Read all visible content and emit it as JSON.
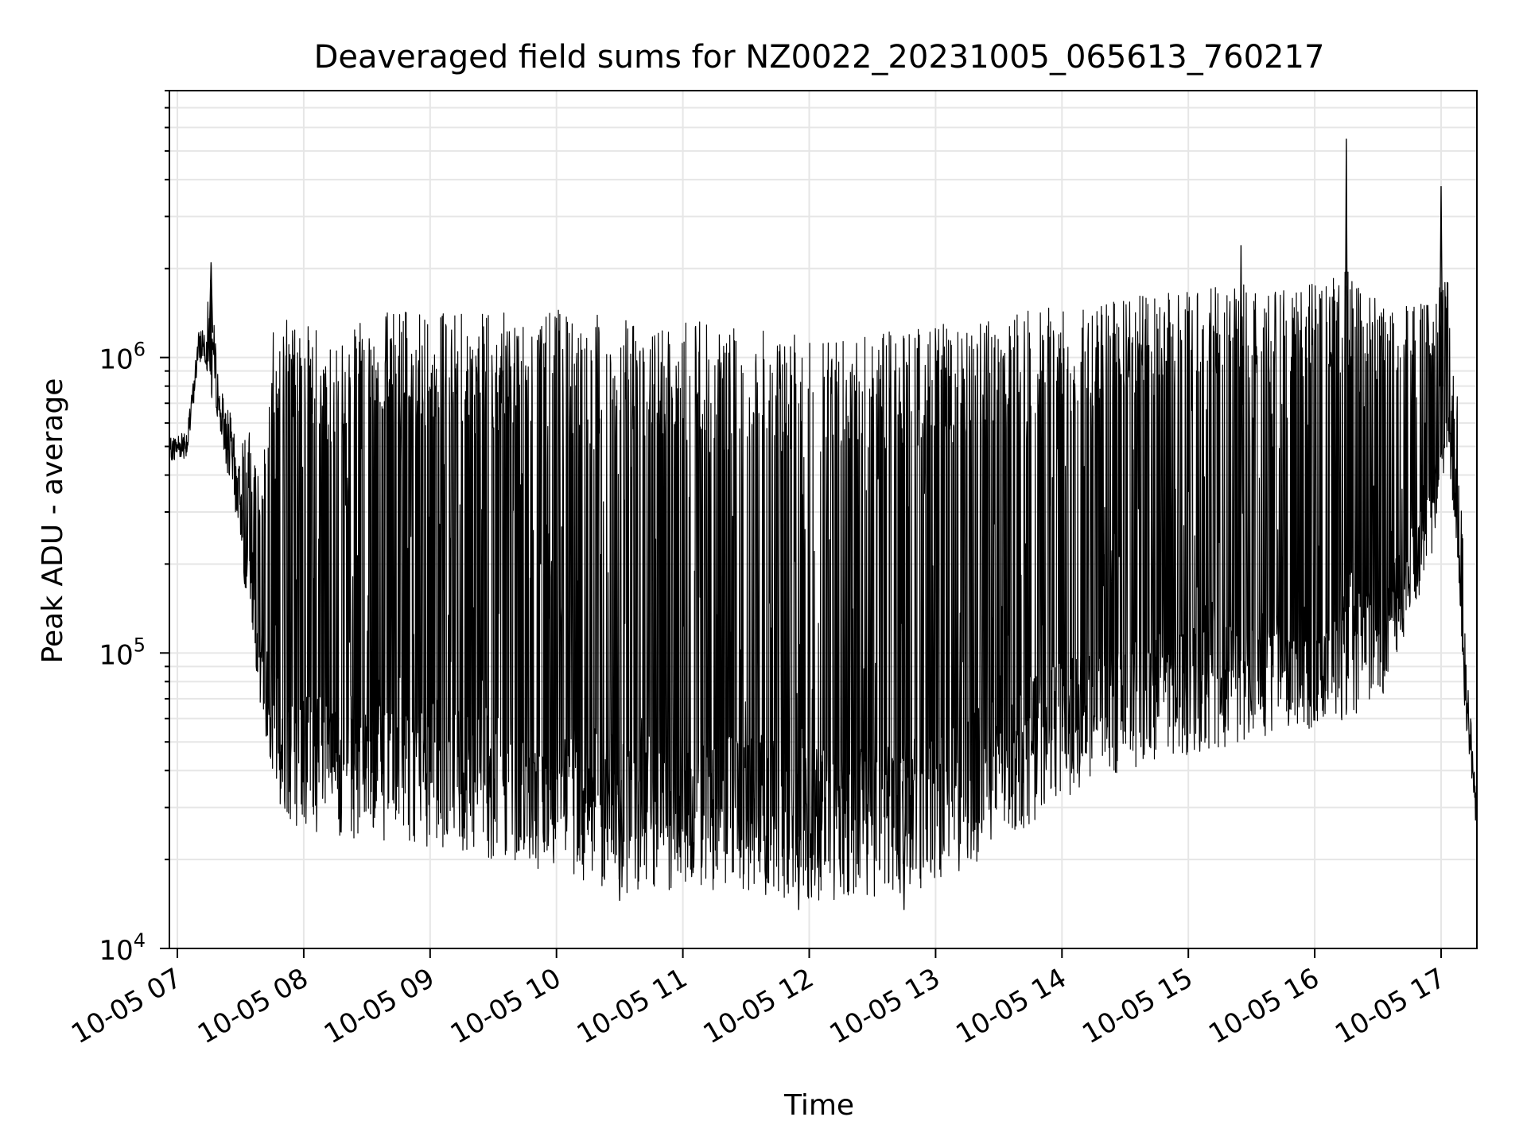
{
  "chart_data": {
    "type": "line",
    "title": "Deaveraged field sums for NZ0022_20231005_065613_760217",
    "xlabel": "Time",
    "ylabel": "Peak ADU - average",
    "y_scale": "log",
    "ylim": [
      10000,
      8000000
    ],
    "xlim": [
      "2023-10-05T06:56:13",
      "2023-10-05T17:17:00"
    ],
    "grid": true,
    "line_color": "#000000",
    "grid_color": "#e6e6e6",
    "x_ticks": [
      {
        "value": "2023-10-05T07:00:00",
        "label": "10-05 07"
      },
      {
        "value": "2023-10-05T08:00:00",
        "label": "10-05 08"
      },
      {
        "value": "2023-10-05T09:00:00",
        "label": "10-05 09"
      },
      {
        "value": "2023-10-05T10:00:00",
        "label": "10-05 10"
      },
      {
        "value": "2023-10-05T11:00:00",
        "label": "10-05 11"
      },
      {
        "value": "2023-10-05T12:00:00",
        "label": "10-05 12"
      },
      {
        "value": "2023-10-05T13:00:00",
        "label": "10-05 13"
      },
      {
        "value": "2023-10-05T14:00:00",
        "label": "10-05 14"
      },
      {
        "value": "2023-10-05T15:00:00",
        "label": "10-05 15"
      },
      {
        "value": "2023-10-05T16:00:00",
        "label": "10-05 16"
      },
      {
        "value": "2023-10-05T17:00:00",
        "label": "10-05 17"
      }
    ],
    "y_ticks": [
      {
        "value": 10000,
        "base": "10",
        "exp": "4"
      },
      {
        "value": 100000,
        "base": "10",
        "exp": "5"
      },
      {
        "value": 1000000,
        "base": "10",
        "exp": "6"
      }
    ],
    "series": [
      {
        "envelope": [
          {
            "t": "2023-10-05T06:56:13",
            "low": 420000,
            "high": 560000
          },
          {
            "t": "2023-10-05T07:05:00",
            "low": 420000,
            "high": 650000
          },
          {
            "t": "2023-10-05T07:10:00",
            "low": 900000,
            "high": 1300000
          },
          {
            "t": "2023-10-05T07:16:00",
            "low": 700000,
            "high": 2100000
          },
          {
            "t": "2023-10-05T07:20:00",
            "low": 500000,
            "high": 900000
          },
          {
            "t": "2023-10-05T07:25:00",
            "low": 300000,
            "high": 800000
          },
          {
            "t": "2023-10-05T07:30:00",
            "low": 200000,
            "high": 500000
          },
          {
            "t": "2023-10-05T07:35:00",
            "low": 130000,
            "high": 600000
          },
          {
            "t": "2023-10-05T07:40:00",
            "low": 60000,
            "high": 350000
          },
          {
            "t": "2023-10-05T07:45:00",
            "low": 35000,
            "high": 1200000
          },
          {
            "t": "2023-10-05T07:50:00",
            "low": 28000,
            "high": 1400000
          },
          {
            "t": "2023-10-05T08:00:00",
            "low": 25000,
            "high": 1400000
          },
          {
            "t": "2023-10-05T08:15:00",
            "low": 24000,
            "high": 1200000
          },
          {
            "t": "2023-10-05T08:30:00",
            "low": 23000,
            "high": 1400000
          },
          {
            "t": "2023-10-05T09:00:00",
            "low": 22000,
            "high": 1450000
          },
          {
            "t": "2023-10-05T09:30:00",
            "low": 20000,
            "high": 1400000
          },
          {
            "t": "2023-10-05T10:00:00",
            "low": 17000,
            "high": 1500000
          },
          {
            "t": "2023-10-05T10:30:00",
            "low": 15000,
            "high": 1400000
          },
          {
            "t": "2023-10-05T11:00:00",
            "low": 16000,
            "high": 1350000
          },
          {
            "t": "2023-10-05T11:30:00",
            "low": 15500,
            "high": 1250000
          },
          {
            "t": "2023-10-05T12:00:00",
            "low": 14500,
            "high": 1200000
          },
          {
            "t": "2023-10-05T12:30:00",
            "low": 14500,
            "high": 1200000
          },
          {
            "t": "2023-10-05T13:00:00",
            "low": 16000,
            "high": 1300000
          },
          {
            "t": "2023-10-05T13:30:00",
            "low": 22000,
            "high": 1400000
          },
          {
            "t": "2023-10-05T14:00:00",
            "low": 32000,
            "high": 1500000
          },
          {
            "t": "2023-10-05T14:30:00",
            "low": 40000,
            "high": 1600000
          },
          {
            "t": "2023-10-05T15:00:00",
            "low": 45000,
            "high": 1700000
          },
          {
            "t": "2023-10-05T15:30:00",
            "low": 50000,
            "high": 1800000
          },
          {
            "t": "2023-10-05T16:00:00",
            "low": 55000,
            "high": 1800000
          },
          {
            "t": "2023-10-05T16:15:00",
            "low": 60000,
            "high": 2000000
          },
          {
            "t": "2023-10-05T16:30:00",
            "low": 65000,
            "high": 1700000
          },
          {
            "t": "2023-10-05T16:55:00",
            "low": 200000,
            "high": 1500000
          },
          {
            "t": "2023-10-05T17:03:00",
            "low": 500000,
            "high": 2000000
          },
          {
            "t": "2023-10-05T17:08:00",
            "low": 200000,
            "high": 700000
          },
          {
            "t": "2023-10-05T17:12:00",
            "low": 45000,
            "high": 120000
          },
          {
            "t": "2023-10-05T17:17:00",
            "low": 22000,
            "high": 35000
          }
        ],
        "peaks": [
          {
            "t": "2023-10-05T07:16:00",
            "y": 2100000
          },
          {
            "t": "2023-10-05T16:15:00",
            "y": 5500000
          },
          {
            "t": "2023-10-05T17:00:00",
            "y": 3800000
          },
          {
            "t": "2023-10-05T15:25:00",
            "y": 2400000
          }
        ],
        "lows": [
          {
            "t": "2023-10-05T11:55:00",
            "y": 13500
          },
          {
            "t": "2023-10-05T12:45:00",
            "y": 13500
          },
          {
            "t": "2023-10-05T10:30:00",
            "y": 14500
          }
        ]
      }
    ]
  }
}
